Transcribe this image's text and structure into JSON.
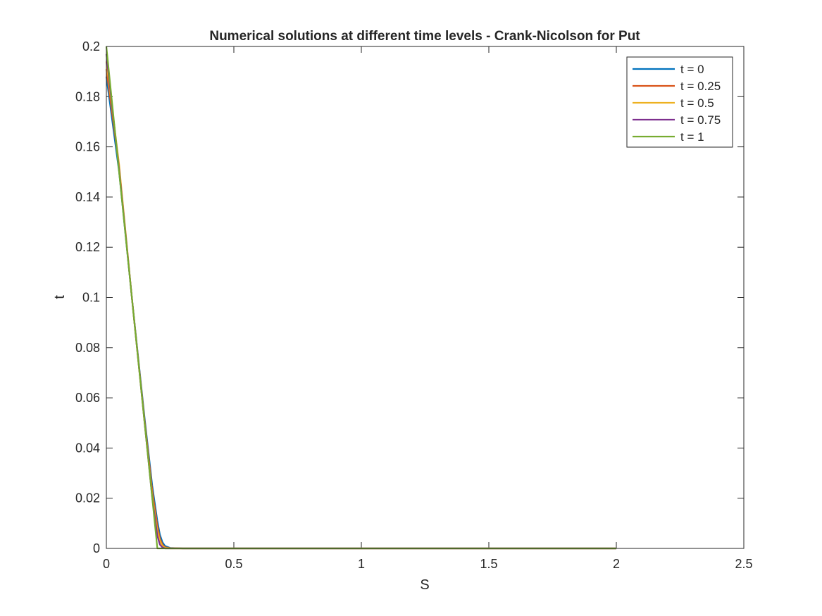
{
  "chart_data": {
    "type": "line",
    "title": "Numerical solutions at different time levels - Crank-Nicolson for Put",
    "xlabel": "S",
    "ylabel": "t",
    "xlim": [
      0,
      2.5
    ],
    "ylim": [
      0,
      0.2
    ],
    "xticks": [
      0,
      0.5,
      1,
      1.5,
      2,
      2.5
    ],
    "xtick_labels": [
      "0",
      "0.5",
      "1",
      "1.5",
      "2",
      "2.5"
    ],
    "yticks": [
      0,
      0.02,
      0.04,
      0.06,
      0.08,
      0.1,
      0.12,
      0.14,
      0.16,
      0.18,
      0.2
    ],
    "ytick_labels": [
      "0",
      "0.02",
      "0.04",
      "0.06",
      "0.08",
      "0.1",
      "0.12",
      "0.14",
      "0.16",
      "0.18",
      "0.2"
    ],
    "grid": false,
    "legend_position": "top-right",
    "series": [
      {
        "name": "t = 0",
        "color": "#0072BD",
        "x": [
          0,
          0.05,
          0.1,
          0.15,
          0.18,
          0.2,
          0.21,
          0.22,
          0.23,
          0.25,
          0.3,
          0.5,
          1,
          1.5,
          2
        ],
        "y": [
          0.188,
          0.15,
          0.1,
          0.052,
          0.025,
          0.011,
          0.0055,
          0.0025,
          0.001,
          0.0002,
          0,
          0,
          0,
          0,
          0
        ]
      },
      {
        "name": "t = 0.25",
        "color": "#D95319",
        "x": [
          0,
          0.05,
          0.1,
          0.15,
          0.18,
          0.2,
          0.21,
          0.22,
          0.23,
          0.25,
          0.3,
          0.5,
          1,
          1.5,
          2
        ],
        "y": [
          0.191,
          0.152,
          0.1,
          0.051,
          0.023,
          0.009,
          0.004,
          0.0015,
          0.0005,
          0.0001,
          0,
          0,
          0,
          0,
          0
        ]
      },
      {
        "name": "t = 0.5",
        "color": "#EDB120",
        "x": [
          0,
          0.05,
          0.1,
          0.15,
          0.18,
          0.2,
          0.21,
          0.22,
          0.23,
          0.25,
          0.3,
          0.5,
          1,
          1.5,
          2
        ],
        "y": [
          0.194,
          0.153,
          0.1,
          0.05,
          0.021,
          0.007,
          0.003,
          0.001,
          0.0003,
          0,
          0,
          0,
          0,
          0,
          0
        ]
      },
      {
        "name": "t = 0.75",
        "color": "#7E2F8E",
        "x": [
          0,
          0.05,
          0.1,
          0.15,
          0.18,
          0.2,
          0.21,
          0.22,
          0.23,
          0.25,
          0.3,
          0.5,
          1,
          1.5,
          2
        ],
        "y": [
          0.197,
          0.151,
          0.1,
          0.05,
          0.02,
          0.005,
          0.0015,
          0.0004,
          0,
          0,
          0,
          0,
          0,
          0,
          0
        ]
      },
      {
        "name": "t = 1",
        "color": "#77AC30",
        "x": [
          0,
          0.05,
          0.1,
          0.15,
          0.2,
          0.21,
          0.25,
          0.5,
          1,
          1.5,
          2
        ],
        "y": [
          0.2,
          0.15,
          0.1,
          0.05,
          0,
          0,
          0,
          0,
          0,
          0,
          0
        ]
      }
    ]
  }
}
